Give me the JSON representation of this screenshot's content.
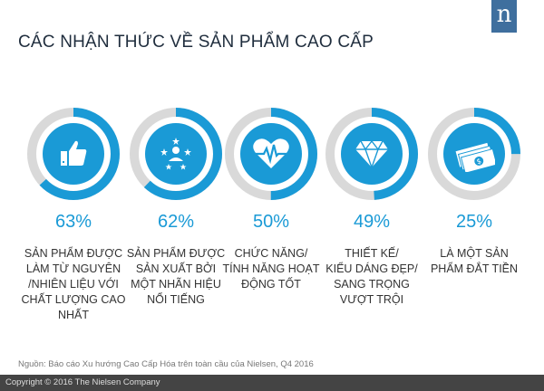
{
  "title": "CÁC NHẬN THỨC VỀ SẢN PHẨM CAO CẤP",
  "logo_letter": "n",
  "source": "Nguồn: Báo cáo Xu hướng Cao Cấp Hóa trên toàn cầu của Nielsen, Q4 2016",
  "footer": "Copyright © 2016 The Nielsen Company",
  "colors": {
    "accent": "#1a9ad6",
    "track": "#d9d9d9",
    "logo": "#3f6f9e"
  },
  "chart_data": {
    "type": "donut",
    "title": "CÁC NHẬN THỨC VỀ SẢN PHẨM CAO CẤP",
    "items": [
      {
        "value": 63,
        "label": "63%",
        "icon": "thumbs-up-icon",
        "lines": [
          "SẢN PHẨM ĐƯỢC",
          "LÀM TỪ NGUYÊN",
          "/NHIÊN LIỆU VỚI",
          "CHẤT LƯỢNG CAO",
          "NHẤT"
        ]
      },
      {
        "value": 62,
        "label": "62%",
        "icon": "star-person-icon",
        "lines": [
          "SẢN PHẨM ĐƯỢC",
          "SẢN XUẤT BỞI",
          "MỘT NHÃN HIỆU",
          "NỔI TIẾNG"
        ]
      },
      {
        "value": 50,
        "label": "50%",
        "icon": "heartbeat-icon",
        "lines": [
          "CHỨC NĂNG/",
          "TÍNH NĂNG HOẠT",
          "ĐỘNG TỐT"
        ]
      },
      {
        "value": 49,
        "label": "49%",
        "icon": "diamond-icon",
        "lines": [
          "THIẾT KẾ/",
          "KIỂU DÁNG ĐẸP/",
          "SANG TRỌNG",
          "VƯỢT TRỘI"
        ]
      },
      {
        "value": 25,
        "label": "25%",
        "icon": "money-icon",
        "lines": [
          "LÀ MỘT SẢN",
          "PHẨM ĐẮT TIỀN"
        ]
      }
    ]
  }
}
